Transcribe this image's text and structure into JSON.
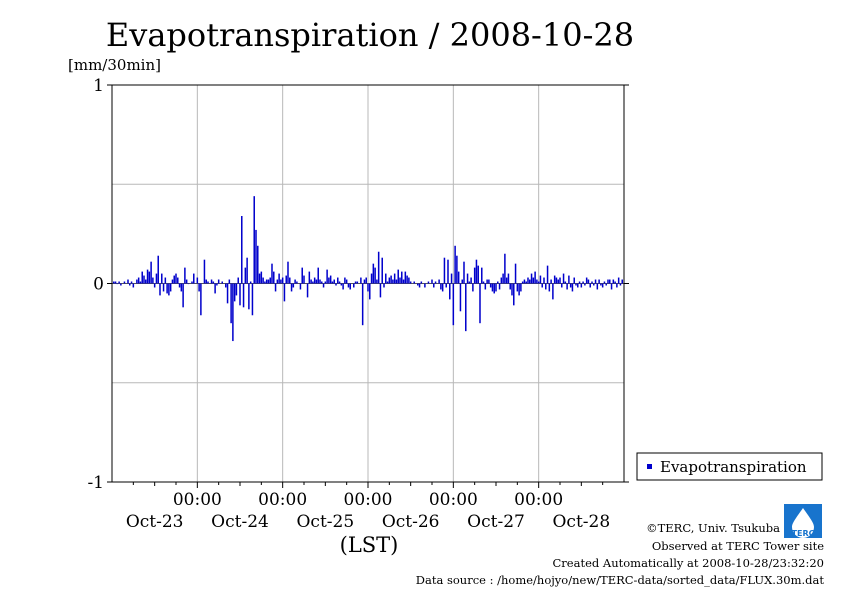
{
  "chart_data": {
    "type": "bar",
    "title": "Evapotranspiration / 2008-10-28",
    "ylabel": "[mm/30min]",
    "xlabel": "(LST)",
    "ylim": [
      -1,
      1
    ],
    "yticks": [
      1,
      0,
      -1
    ],
    "grid": true,
    "xlim_hours": [
      0,
      144
    ],
    "x_tick_hours": [
      24,
      48,
      72,
      96,
      120
    ],
    "x_tick_time": [
      "00:00",
      "00:00",
      "00:00",
      "00:00",
      "00:00"
    ],
    "day_label_hours": [
      12,
      36,
      60,
      84,
      108,
      132
    ],
    "day_labels": [
      "Oct-23",
      "Oct-24",
      "Oct-25",
      "Oct-26",
      "Oct-27",
      "Oct-28"
    ],
    "legend": {
      "position": "right",
      "label": "Evapotranspiration"
    },
    "series": [
      {
        "name": "Evapotranspiration",
        "color": "#0000cc",
        "points": [
          [
            0.5,
            0.01
          ],
          [
            1.0,
            0.01
          ],
          [
            1.5,
            0.0
          ],
          [
            2.0,
            0.01
          ],
          [
            2.5,
            -0.01
          ],
          [
            3.5,
            0.01
          ],
          [
            4.5,
            0.02
          ],
          [
            5.0,
            -0.01
          ],
          [
            5.5,
            0.01
          ],
          [
            6.0,
            -0.02
          ],
          [
            7.0,
            0.02
          ],
          [
            7.5,
            0.03
          ],
          [
            8.0,
            0.01
          ],
          [
            8.5,
            0.06
          ],
          [
            9.0,
            0.04
          ],
          [
            9.5,
            0.02
          ],
          [
            10.0,
            0.07
          ],
          [
            10.5,
            0.06
          ],
          [
            11.0,
            0.11
          ],
          [
            11.5,
            0.03
          ],
          [
            12.0,
            -0.02
          ],
          [
            12.5,
            0.05
          ],
          [
            13.0,
            0.14
          ],
          [
            13.5,
            -0.06
          ],
          [
            14.0,
            0.05
          ],
          [
            14.5,
            -0.04
          ],
          [
            15.0,
            0.03
          ],
          [
            15.5,
            -0.05
          ],
          [
            16.0,
            -0.06
          ],
          [
            16.5,
            -0.04
          ],
          [
            17.0,
            0.02
          ],
          [
            17.5,
            0.04
          ],
          [
            18.0,
            0.05
          ],
          [
            18.5,
            0.03
          ],
          [
            19.0,
            -0.02
          ],
          [
            19.5,
            -0.04
          ],
          [
            20.0,
            -0.12
          ],
          [
            20.5,
            0.08
          ],
          [
            21.0,
            0.02
          ],
          [
            21.5,
            0.0
          ],
          [
            22.5,
            0.01
          ],
          [
            23.0,
            0.05
          ],
          [
            24.0,
            0.03
          ],
          [
            24.5,
            -0.04
          ],
          [
            25.0,
            -0.16
          ],
          [
            26.0,
            0.12
          ],
          [
            26.5,
            0.02
          ],
          [
            27.0,
            0.01
          ],
          [
            28.0,
            0.02
          ],
          [
            28.5,
            0.01
          ],
          [
            29.0,
            -0.05
          ],
          [
            29.5,
            -0.01
          ],
          [
            30.0,
            0.02
          ],
          [
            31.0,
            0.01
          ],
          [
            32.0,
            -0.02
          ],
          [
            32.5,
            -0.1
          ],
          [
            33.0,
            0.02
          ],
          [
            33.5,
            -0.2
          ],
          [
            34.0,
            -0.29
          ],
          [
            34.5,
            -0.09
          ],
          [
            35.0,
            -0.06
          ],
          [
            35.5,
            0.03
          ],
          [
            36.0,
            -0.11
          ],
          [
            36.5,
            0.34
          ],
          [
            37.0,
            -0.12
          ],
          [
            37.5,
            0.08
          ],
          [
            38.0,
            0.13
          ],
          [
            38.5,
            -0.13
          ],
          [
            39.0,
            0.01
          ],
          [
            39.5,
            -0.16
          ],
          [
            40.0,
            0.44
          ],
          [
            40.5,
            0.27
          ],
          [
            41.0,
            0.19
          ],
          [
            41.5,
            0.05
          ],
          [
            42.0,
            0.06
          ],
          [
            42.5,
            0.03
          ],
          [
            43.0,
            0.01
          ],
          [
            43.5,
            0.02
          ],
          [
            44.0,
            0.02
          ],
          [
            44.5,
            0.03
          ],
          [
            45.0,
            0.1
          ],
          [
            45.5,
            0.06
          ],
          [
            46.0,
            -0.04
          ],
          [
            46.5,
            0.02
          ],
          [
            47.0,
            0.05
          ],
          [
            47.5,
            0.02
          ],
          [
            48.0,
            0.03
          ],
          [
            48.5,
            -0.09
          ],
          [
            49.0,
            0.04
          ],
          [
            49.5,
            0.11
          ],
          [
            50.0,
            0.03
          ],
          [
            50.5,
            -0.04
          ],
          [
            51.0,
            -0.02
          ],
          [
            51.5,
            0.02
          ],
          [
            52.0,
            0.01
          ],
          [
            53.0,
            -0.03
          ],
          [
            53.5,
            0.08
          ],
          [
            54.0,
            0.04
          ],
          [
            55.0,
            -0.07
          ],
          [
            55.5,
            0.06
          ],
          [
            56.0,
            0.02
          ],
          [
            56.5,
            0.01
          ],
          [
            57.0,
            0.03
          ],
          [
            57.5,
            0.02
          ],
          [
            58.0,
            0.08
          ],
          [
            58.5,
            0.02
          ],
          [
            59.0,
            0.01
          ],
          [
            59.5,
            -0.02
          ],
          [
            60.0,
            0.01
          ],
          [
            60.5,
            0.07
          ],
          [
            61.0,
            0.03
          ],
          [
            61.5,
            0.04
          ],
          [
            62.0,
            0.01
          ],
          [
            62.5,
            0.02
          ],
          [
            63.0,
            -0.01
          ],
          [
            63.5,
            0.03
          ],
          [
            64.0,
            0.01
          ],
          [
            64.5,
            -0.01
          ],
          [
            65.0,
            -0.03
          ],
          [
            65.5,
            0.03
          ],
          [
            66.0,
            0.02
          ],
          [
            66.5,
            -0.02
          ],
          [
            67.0,
            -0.03
          ],
          [
            68.0,
            -0.02
          ],
          [
            68.5,
            0.01
          ],
          [
            69.0,
            0.01
          ],
          [
            70.0,
            0.03
          ],
          [
            70.5,
            -0.21
          ],
          [
            71.0,
            0.02
          ],
          [
            71.5,
            0.03
          ],
          [
            72.0,
            -0.04
          ],
          [
            72.5,
            -0.08
          ],
          [
            73.0,
            0.05
          ],
          [
            73.5,
            0.1
          ],
          [
            74.0,
            0.08
          ],
          [
            74.5,
            0.02
          ],
          [
            75.0,
            0.16
          ],
          [
            75.5,
            -0.07
          ],
          [
            76.0,
            0.13
          ],
          [
            76.5,
            -0.02
          ],
          [
            77.0,
            0.05
          ],
          [
            77.5,
            0.01
          ],
          [
            78.0,
            0.03
          ],
          [
            78.5,
            0.04
          ],
          [
            79.0,
            0.02
          ],
          [
            79.5,
            0.05
          ],
          [
            80.0,
            0.02
          ],
          [
            80.5,
            0.07
          ],
          [
            81.0,
            0.03
          ],
          [
            81.5,
            0.06
          ],
          [
            82.0,
            0.02
          ],
          [
            82.5,
            0.06
          ],
          [
            83.0,
            0.04
          ],
          [
            83.5,
            0.03
          ],
          [
            84.0,
            0.01
          ],
          [
            85.0,
            0.01
          ],
          [
            86.0,
            -0.01
          ],
          [
            86.5,
            -0.02
          ],
          [
            87.0,
            0.01
          ],
          [
            88.0,
            -0.02
          ],
          [
            89.0,
            0.01
          ],
          [
            90.0,
            0.02
          ],
          [
            90.5,
            -0.02
          ],
          [
            91.0,
            0.01
          ],
          [
            92.0,
            0.02
          ],
          [
            92.5,
            -0.03
          ],
          [
            93.0,
            -0.04
          ],
          [
            93.5,
            0.13
          ],
          [
            94.0,
            -0.02
          ],
          [
            94.5,
            0.12
          ],
          [
            95.0,
            -0.08
          ],
          [
            95.5,
            0.05
          ],
          [
            96.0,
            -0.21
          ],
          [
            96.5,
            0.19
          ],
          [
            97.0,
            0.14
          ],
          [
            97.5,
            0.06
          ],
          [
            98.0,
            -0.14
          ],
          [
            98.5,
            0.02
          ],
          [
            99.0,
            0.11
          ],
          [
            99.5,
            -0.24
          ],
          [
            100.0,
            0.05
          ],
          [
            100.5,
            0.01
          ],
          [
            101.0,
            0.03
          ],
          [
            101.5,
            -0.04
          ],
          [
            102.0,
            0.08
          ],
          [
            102.5,
            0.12
          ],
          [
            103.0,
            0.09
          ],
          [
            103.5,
            -0.2
          ],
          [
            104.0,
            0.08
          ],
          [
            104.5,
            0.01
          ],
          [
            105.0,
            -0.03
          ],
          [
            105.5,
            0.02
          ],
          [
            106.0,
            0.02
          ],
          [
            106.5,
            -0.02
          ],
          [
            107.0,
            -0.04
          ],
          [
            107.5,
            -0.05
          ],
          [
            108.0,
            -0.04
          ],
          [
            108.5,
            0.01
          ],
          [
            109.0,
            -0.03
          ],
          [
            109.5,
            0.03
          ],
          [
            110.0,
            0.05
          ],
          [
            110.5,
            0.15
          ],
          [
            111.0,
            0.03
          ],
          [
            111.5,
            0.05
          ],
          [
            112.0,
            -0.03
          ],
          [
            112.5,
            -0.06
          ],
          [
            113.0,
            -0.11
          ],
          [
            113.5,
            0.1
          ],
          [
            114.0,
            -0.04
          ],
          [
            114.5,
            -0.06
          ],
          [
            115.0,
            -0.04
          ],
          [
            115.5,
            0.01
          ],
          [
            116.0,
            0.02
          ],
          [
            116.5,
            0.01
          ],
          [
            117.0,
            0.03
          ],
          [
            117.5,
            0.02
          ],
          [
            118.0,
            0.05
          ],
          [
            118.5,
            0.03
          ],
          [
            119.0,
            0.06
          ],
          [
            119.5,
            0.02
          ],
          [
            120.0,
            0.01
          ],
          [
            120.5,
            0.04
          ],
          [
            121.0,
            -0.02
          ],
          [
            121.5,
            0.03
          ],
          [
            122.0,
            -0.03
          ],
          [
            122.5,
            0.09
          ],
          [
            123.0,
            -0.04
          ],
          [
            123.5,
            0.02
          ],
          [
            124.0,
            -0.08
          ],
          [
            124.5,
            0.04
          ],
          [
            125.0,
            0.03
          ],
          [
            125.5,
            0.02
          ],
          [
            126.0,
            0.03
          ],
          [
            126.5,
            -0.02
          ],
          [
            127.0,
            0.05
          ],
          [
            127.5,
            0.01
          ],
          [
            128.0,
            -0.03
          ],
          [
            128.5,
            0.04
          ],
          [
            129.0,
            -0.02
          ],
          [
            129.5,
            -0.04
          ],
          [
            130.0,
            0.03
          ],
          [
            130.5,
            -0.01
          ],
          [
            131.0,
            -0.02
          ],
          [
            131.5,
            0.01
          ],
          [
            132.0,
            -0.02
          ],
          [
            132.5,
            0.01
          ],
          [
            133.0,
            -0.01
          ],
          [
            133.5,
            0.03
          ],
          [
            134.0,
            0.02
          ],
          [
            134.5,
            -0.02
          ],
          [
            135.0,
            0.01
          ],
          [
            135.5,
            -0.01
          ],
          [
            136.0,
            0.02
          ],
          [
            136.5,
            -0.03
          ],
          [
            137.0,
            0.02
          ],
          [
            137.5,
            -0.01
          ],
          [
            138.0,
            -0.02
          ],
          [
            138.5,
            0.01
          ],
          [
            139.0,
            -0.01
          ],
          [
            139.5,
            0.02
          ],
          [
            140.0,
            0.02
          ],
          [
            140.5,
            -0.03
          ],
          [
            141.0,
            0.02
          ],
          [
            141.5,
            0.01
          ],
          [
            142.0,
            -0.02
          ],
          [
            142.5,
            0.03
          ],
          [
            143.0,
            -0.01
          ],
          [
            143.5,
            0.02
          ]
        ]
      }
    ]
  },
  "credits": {
    "copyright": "©TERC, Univ. Tsukuba",
    "site": "Observed at TERC Tower site",
    "created": "Created Automatically at 2008-10-28/23:32:20",
    "source": "Data source : /home/hojyo/new/TERC-data/sorted_data/FLUX.30m.dat"
  },
  "logo": {
    "text": "TERC",
    "color": "#1874cd"
  }
}
